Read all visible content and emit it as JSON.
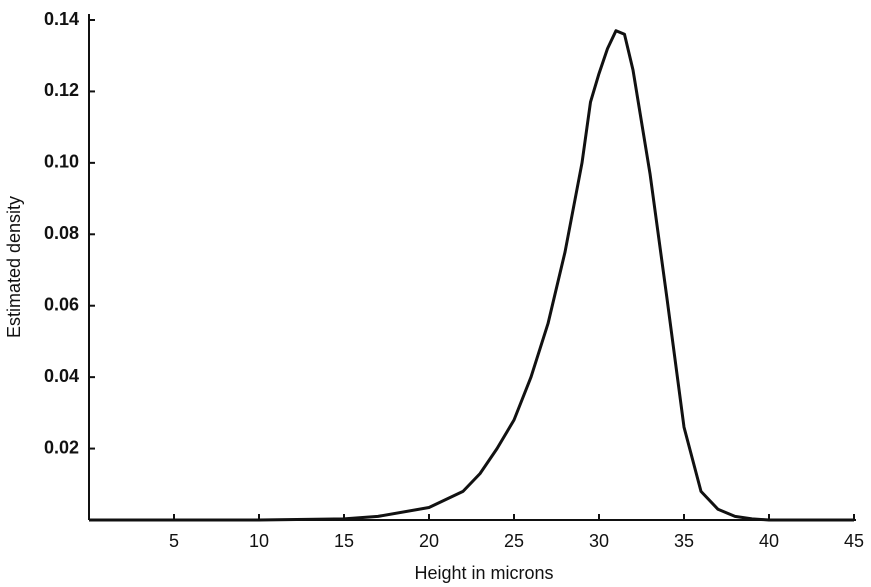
{
  "chart_data": {
    "type": "line",
    "x_label": "Height in microns",
    "y_label": "Estimated density",
    "xlim": [
      0,
      45
    ],
    "xticks": [
      5,
      10,
      15,
      20,
      25,
      30,
      35,
      40,
      45
    ],
    "ylim": [
      0,
      0.14
    ],
    "yticks": [
      0.02,
      0.04,
      0.06,
      0.08,
      {
        "value": 0.1,
        "label": "0.10"
      },
      0.12,
      0.14
    ],
    "grid": false,
    "x": [
      0,
      10,
      15,
      17,
      20,
      22,
      23,
      24,
      25,
      26,
      27,
      28,
      29,
      29.5,
      30,
      30.5,
      31,
      31.5,
      32,
      33,
      34,
      35,
      36,
      37,
      38,
      39,
      40,
      45
    ],
    "series": [
      {
        "color": "#111111",
        "values": [
          0,
          0,
          0.0003,
          0.001,
          0.0035,
          0.008,
          0.013,
          0.02,
          0.028,
          0.04,
          0.055,
          0.075,
          0.1,
          0.117,
          0.125,
          0.132,
          0.137,
          0.136,
          0.126,
          0.097,
          0.062,
          0.026,
          0.008,
          0.003,
          0.001,
          0.0003,
          0,
          0
        ]
      }
    ]
  }
}
